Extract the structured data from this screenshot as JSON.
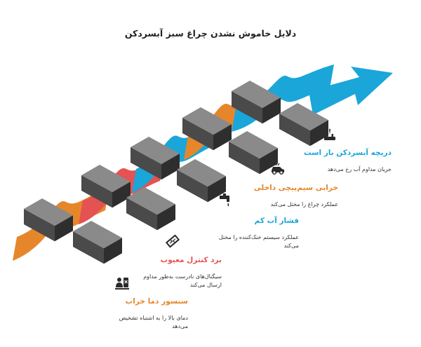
{
  "title": "دلایل خاموش نشدن چراغ سبز آبسردکن",
  "colors": {
    "orange": "#e6862b",
    "red": "#e55252",
    "blue": "#1aa6d9",
    "block_top": "#8a8a8a",
    "block_front": "#4a4a4a",
    "block_side": "#2e2e2e"
  },
  "items": [
    {
      "heading": "دریچه آبسردکن باز است",
      "description": "جریان مداوم آب رخ می‌دهد",
      "color": "#1aa6d9",
      "icon": "faucet-icon"
    },
    {
      "heading": "خرابی سیم‌پیچی داخلی",
      "description": "عملکرد چراغ را مختل می‌کند",
      "color": "#e6862b",
      "icon": "broken-car-icon"
    },
    {
      "heading": "فشار آب کم",
      "description": "عملکرد سیستم خنک‌کننده را مختل می‌کند",
      "color": "#1aa6d9",
      "icon": "tap-icon"
    },
    {
      "heading": "برد کنترل معیوب",
      "description": "سیگنال‌های نادرست به‌طور مداوم ارسال می‌کند",
      "color": "#e55252",
      "icon": "circuit-board-icon"
    },
    {
      "heading": "سنسور دما خراب",
      "description": "دمای بالا را به اشتباه تشخیص می‌دهد",
      "color": "#e6862b",
      "icon": "sensor-icon"
    }
  ]
}
